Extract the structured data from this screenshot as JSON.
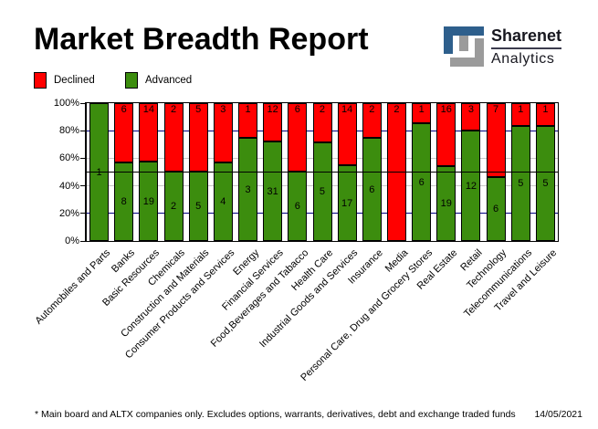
{
  "title": "Market Breadth Report",
  "logo": {
    "name": "Sharenet",
    "tagline": "Analytics"
  },
  "colors": {
    "declined": "#ff0000",
    "advanced": "#3c8d0e",
    "grid_major": "#000080",
    "grid_minor": "#c8c8c8",
    "mid_line": "#000000",
    "logo_blue": "#2e5f8c",
    "logo_gray": "#9b9b9b"
  },
  "legend": {
    "items": [
      {
        "label": "Declined",
        "color": "#ff0000"
      },
      {
        "label": "Advanced",
        "color": "#3c8d0e"
      }
    ]
  },
  "chart_data": {
    "type": "bar",
    "stacked": true,
    "normalized_to_percent": true,
    "title": "Market Breadth Report",
    "categories": [
      "Automobiles and Parts",
      "Banks",
      "Basic Resources",
      "Chemicals",
      "Construction and Materials",
      "Consumer Products and Services",
      "Energy",
      "Financial Services",
      "Food,Beverages and Tabacco",
      "Health Care",
      "Industrial Goods and Services",
      "Insurance",
      "Media",
      "Personal Care, Drug and Grocery Stores",
      "Real Estate",
      "Retail",
      "Technology",
      "Telecommunications",
      "Travel and Leisure"
    ],
    "series": [
      {
        "name": "Declined",
        "color": "#ff0000",
        "values": [
          0,
          6,
          14,
          2,
          5,
          3,
          1,
          12,
          6,
          2,
          14,
          2,
          2,
          1,
          16,
          3,
          7,
          1,
          1
        ]
      },
      {
        "name": "Advanced",
        "color": "#3c8d0e",
        "values": [
          1,
          8,
          19,
          2,
          5,
          4,
          3,
          31,
          6,
          5,
          17,
          6,
          0,
          6,
          19,
          12,
          6,
          5,
          5
        ]
      }
    ],
    "value_axis": {
      "range": [
        0,
        100
      ],
      "ticks": [
        {
          "label": "100%",
          "percent": 100
        },
        {
          "label": "80%",
          "percent": 80
        },
        {
          "label": "60%",
          "percent": 60
        },
        {
          "label": "40%",
          "percent": 40
        },
        {
          "label": "20%",
          "percent": 20
        },
        {
          "label": "0%",
          "percent": 0
        }
      ]
    },
    "gridlines": [
      {
        "percent": 80,
        "color": "#000080"
      },
      {
        "percent": 60,
        "color": "#c8c8c8"
      },
      {
        "percent": 40,
        "color": "#c8c8c8"
      },
      {
        "percent": 20,
        "color": "#000080"
      }
    ],
    "midline": {
      "percent": 50,
      "color": "#000000"
    },
    "legend_position": "top-left"
  },
  "footer": {
    "note": "* Main board and ALTX companies only. Excludes options, warrants, derivatives, debt and exchange traded funds",
    "date": "14/05/2021"
  }
}
